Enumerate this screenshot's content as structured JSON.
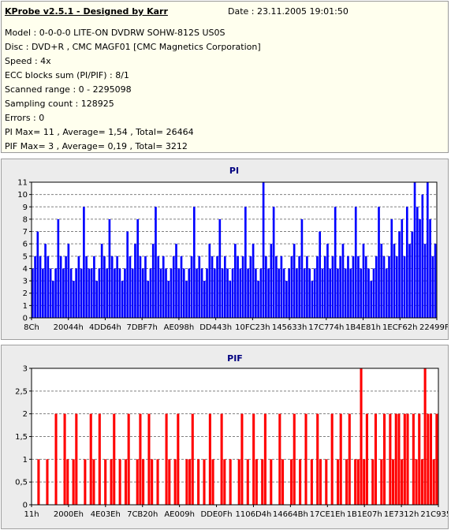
{
  "info": {
    "title": "KProbe v2.5.1 - Designed by Karr",
    "date": "Date : 23.11.2005 19:01:50",
    "lines": [
      "Model : 0-0-0-0 LITE-ON DVDRW SOHW-812S  US0S",
      "Disc : DVD+R , CMC MAGF01 [CMC Magnetics Corporation]",
      "Speed : 4x",
      "ECC blocks sum (PI/PIF) : 8/1",
      "Scanned range : 0 - 2295098",
      "Sampling count : 128925",
      "Errors : 0",
      "PI Max= 11 , Average= 1,54 , Total= 26464",
      "PIF Max= 3 , Average= 0,19 , Total= 3212"
    ]
  },
  "chart_data": [
    {
      "type": "bar",
      "title": "PI",
      "color": "#0000ff",
      "title_color": "#000080",
      "ylim": [
        0,
        11
      ],
      "yticks": [
        "0",
        "1",
        "2",
        "3",
        "4",
        "5",
        "6",
        "7",
        "8",
        "9",
        "10",
        "11"
      ],
      "xticks": [
        "8Ch",
        "20044h",
        "4DD64h",
        "7DBF7h",
        "AE098h",
        "DD443h",
        "10FC23h",
        "145633h",
        "17C774h",
        "1B4E81h",
        "1ECF62h",
        "22499Fh"
      ],
      "grid": true,
      "series": [
        {
          "values": [
            4,
            5,
            7,
            5,
            4,
            6,
            5,
            4,
            3,
            4,
            8,
            5,
            4,
            5,
            6,
            4,
            3,
            4,
            5,
            4,
            9,
            5,
            4,
            4,
            5,
            3,
            4,
            6,
            5,
            4,
            8,
            5,
            4,
            5,
            4,
            3,
            4,
            7,
            5,
            4,
            6,
            8,
            5,
            4,
            5,
            3,
            4,
            6,
            9,
            5,
            4,
            5,
            4,
            3,
            4,
            5,
            6,
            4,
            5,
            4,
            3,
            4,
            5,
            9,
            4,
            5,
            4,
            3,
            4,
            6,
            5,
            4,
            5,
            8,
            4,
            5,
            4,
            3,
            4,
            6,
            5,
            4,
            5,
            9,
            4,
            5,
            6,
            4,
            3,
            4,
            11,
            5,
            4,
            6,
            9,
            5,
            4,
            5,
            4,
            3,
            4,
            5,
            6,
            4,
            5,
            8,
            4,
            5,
            4,
            3,
            4,
            5,
            7,
            4,
            5,
            6,
            4,
            5,
            9,
            4,
            5,
            6,
            4,
            5,
            4,
            5,
            9,
            5,
            4,
            6,
            5,
            4,
            3,
            4,
            5,
            9,
            6,
            5,
            4,
            5,
            8,
            6,
            5,
            7,
            8,
            5,
            9,
            6,
            7,
            11,
            9,
            8,
            10,
            6,
            11,
            8,
            5,
            6
          ]
        }
      ]
    },
    {
      "type": "bar",
      "title": "PIF",
      "color": "#ff0000",
      "title_color": "#000080",
      "ylim": [
        0,
        3
      ],
      "yticks": [
        "0",
        "0,5",
        "1",
        "1,5",
        "2",
        "2,5",
        "3"
      ],
      "xticks": [
        "11h",
        "2000Eh",
        "4E03Eh",
        "7CB20h",
        "AE009h",
        "DDE0Fh",
        "1106D4h",
        "14664Bh",
        "17CE1Eh",
        "1B1E07h",
        "1E7312h",
        "21C935h"
      ],
      "grid": true,
      "series": [
        {
          "values": [
            0,
            0,
            1,
            0,
            0,
            1,
            0,
            0,
            2,
            0,
            0,
            2,
            1,
            0,
            1,
            2,
            0,
            0,
            1,
            0,
            2,
            1,
            0,
            2,
            0,
            1,
            0,
            1,
            2,
            0,
            1,
            0,
            1,
            2,
            0,
            0,
            1,
            2,
            1,
            0,
            2,
            1,
            0,
            1,
            0,
            0,
            2,
            1,
            0,
            1,
            2,
            0,
            0,
            1,
            1,
            2,
            0,
            1,
            0,
            1,
            0,
            2,
            1,
            0,
            0,
            2,
            1,
            0,
            1,
            0,
            0,
            1,
            2,
            0,
            1,
            0,
            2,
            1,
            0,
            1,
            2,
            0,
            1,
            0,
            0,
            2,
            1,
            0,
            0,
            1,
            2,
            0,
            1,
            0,
            2,
            0,
            1,
            0,
            2,
            1,
            0,
            1,
            0,
            2,
            0,
            1,
            2,
            0,
            1,
            2,
            0,
            1,
            1,
            3,
            1,
            2,
            0,
            1,
            2,
            0,
            1,
            2,
            0,
            2,
            1,
            2,
            2,
            1,
            2,
            2,
            0,
            2,
            1,
            2,
            1,
            3,
            2,
            2,
            1,
            2
          ]
        }
      ]
    }
  ]
}
